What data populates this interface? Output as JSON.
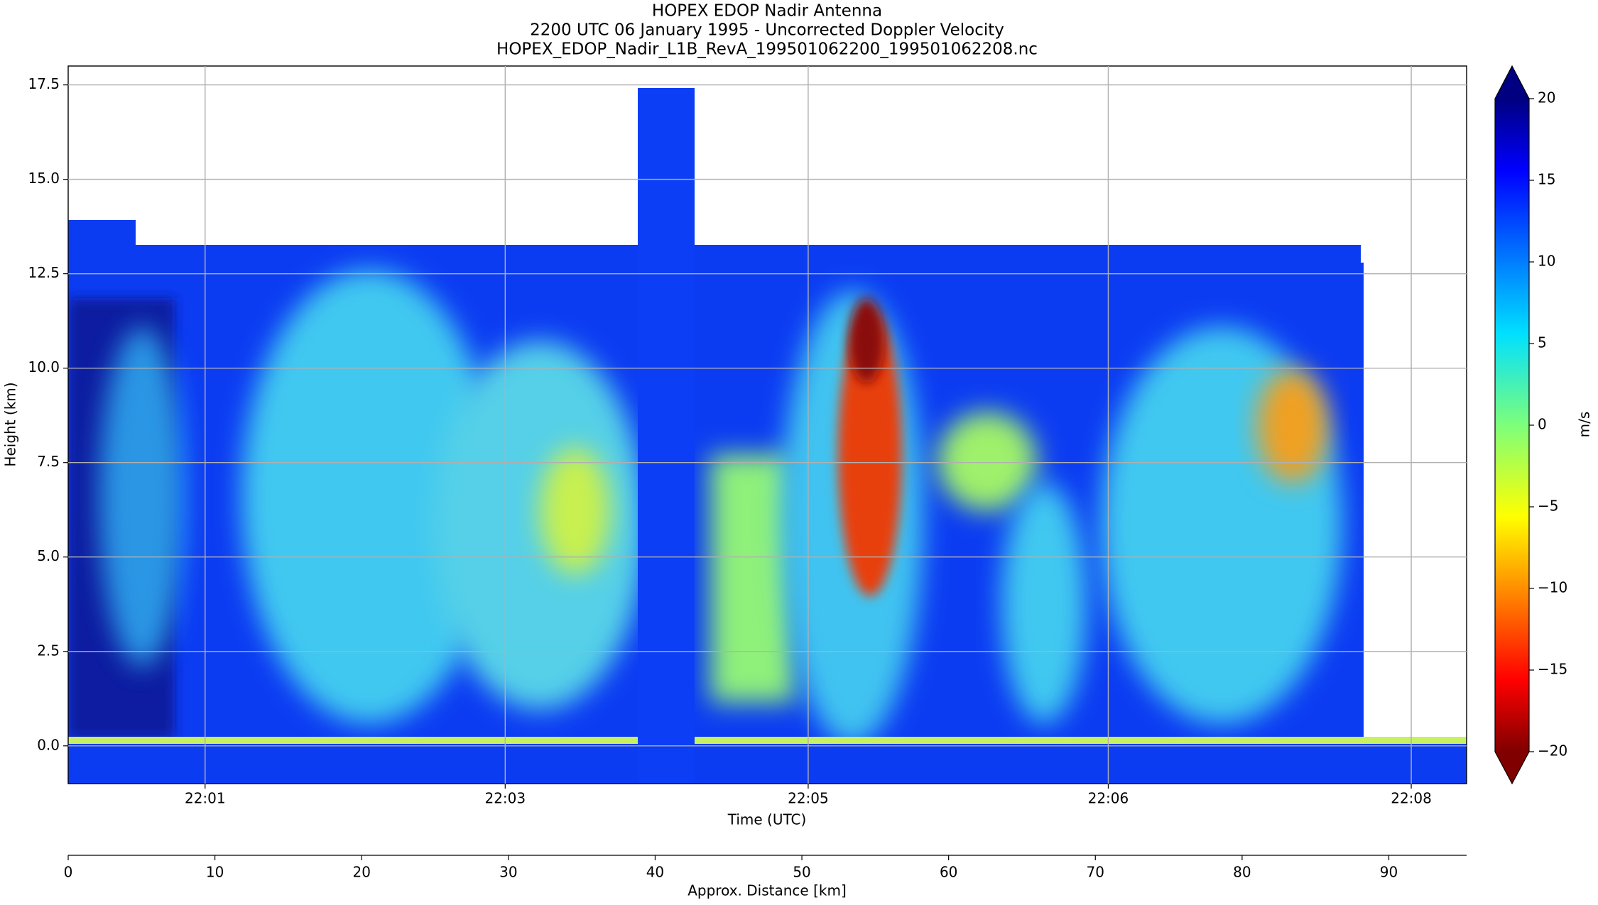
{
  "chart_data": {
    "type": "heatmap",
    "title": "HOPEX EDOP Nadir Antenna",
    "subtitle": "2200 UTC 06 January 1995 - Uncorrected Doppler Velocity",
    "filename": "HOPEX_EDOP_Nadir_L1B_RevA_199501062200_199501062208.nc",
    "xlabel": "Time (UTC)",
    "ylabel": "Height (km)",
    "xlim": [
      0,
      480
    ],
    "xticks": [
      {
        "value": 47,
        "label": "22:01"
      },
      {
        "value": 150,
        "label": "22:03"
      },
      {
        "value": 254,
        "label": "22:05"
      },
      {
        "value": 357,
        "label": "22:06"
      },
      {
        "value": 461,
        "label": "22:08"
      }
    ],
    "ylim": [
      -1,
      18
    ],
    "yticks": [
      {
        "value": 0,
        "label": "0.0"
      },
      {
        "value": 2.5,
        "label": "2.5"
      },
      {
        "value": 5,
        "label": "5.0"
      },
      {
        "value": 7.5,
        "label": "7.5"
      },
      {
        "value": 10,
        "label": "10.0"
      },
      {
        "value": 12.5,
        "label": "12.5"
      },
      {
        "value": 15,
        "label": "15.0"
      },
      {
        "value": 17.5,
        "label": "17.5"
      }
    ],
    "x2label": "Approx. Distance [km]",
    "x2lim": [
      0,
      95.3
    ],
    "x2ticks": [
      0,
      10,
      20,
      30,
      40,
      50,
      60,
      70,
      80,
      90
    ],
    "grid": true,
    "colorbar": {
      "label": "m/s",
      "colormap": "jet",
      "clim": [
        -20,
        20
      ],
      "ticks": [
        {
          "value": -20,
          "label": "−20"
        },
        {
          "value": -15,
          "label": "−15"
        },
        {
          "value": -10,
          "label": "−10"
        },
        {
          "value": -5,
          "label": "−5"
        },
        0,
        5,
        10,
        15,
        20
      ]
    }
  }
}
